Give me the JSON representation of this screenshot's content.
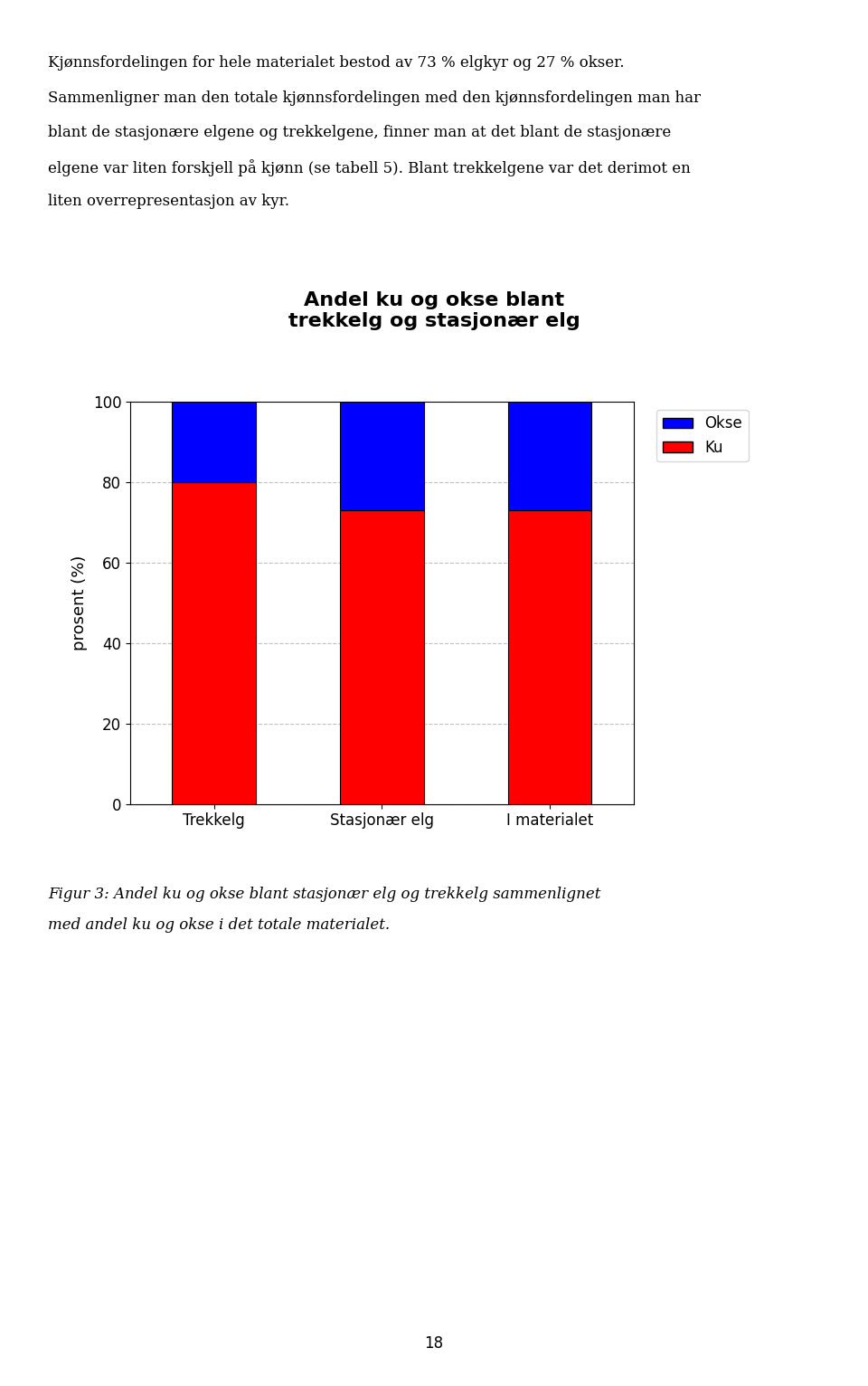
{
  "chart_data": {
    "type": "bar",
    "stacked": true,
    "title": "Andel ku og okse blant\ntrekkelg og stasjonær elg",
    "ylabel": "prosent (%)",
    "categories": [
      "Trekkelg",
      "Stasjonær elg",
      "I materialet"
    ],
    "series": [
      {
        "name": "Ku",
        "color": "#FF0000",
        "values": [
          80,
          73,
          73
        ]
      },
      {
        "name": "Okse",
        "color": "#0000FF",
        "values": [
          20,
          27,
          27
        ]
      }
    ],
    "legend_order": [
      "Okse",
      "Ku"
    ],
    "ylim": [
      0,
      100
    ],
    "yticks": [
      0,
      20,
      40,
      60,
      80,
      100
    ],
    "grid": true,
    "legend": "upper left",
    "annotations": [
      "Kjønnsfordelingen for hele materialet bestod av 73 % elgkyr og 27 % okser.",
      "Sammenligner man den totale kjønnsfordelingen med den kjønnsfordelingen man har",
      "blant de stasjonære elgene og trekkelgene, finner man at det blant de stasjonære",
      "elgene var liten forskjell på kjønn (se tabell 5). Blant trekkelgene var det derimot en",
      "liten overrepresentasjon av kyr.",
      "Figur 3: Andel ku og okse blant stasjonær elg og trekkelg sammenlignet",
      "med andel ku og okse i det totale materialet.",
      "18"
    ]
  }
}
